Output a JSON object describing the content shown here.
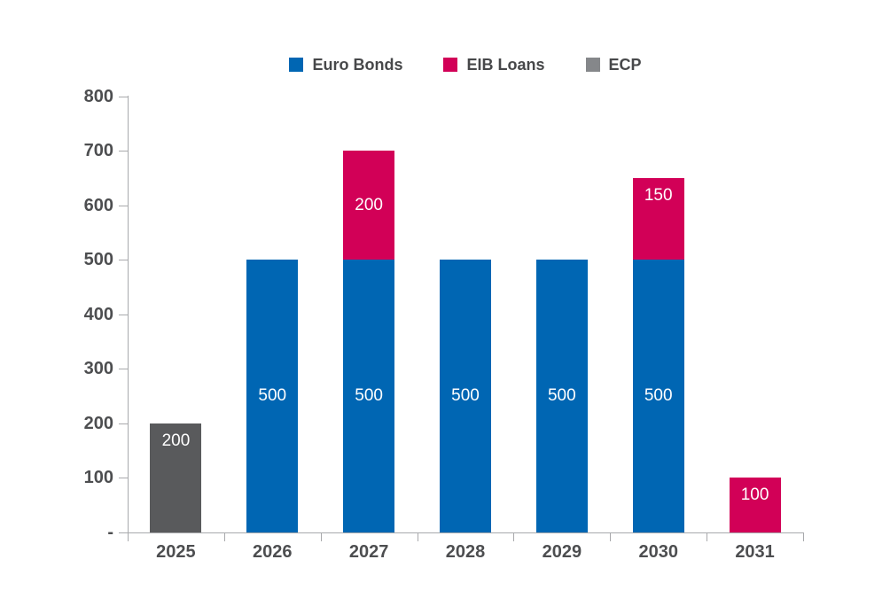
{
  "chart_data": {
    "type": "bar",
    "stacked": true,
    "title": "",
    "xlabel": "",
    "ylabel": "",
    "categories": [
      "2025",
      "2026",
      "2027",
      "2028",
      "2029",
      "2030",
      "2031"
    ],
    "series": [
      {
        "name": "Euro Bonds",
        "color": "#0066B3",
        "legend_color": "#0066B3",
        "values": [
          0,
          500,
          500,
          500,
          500,
          500,
          0
        ],
        "data_labels": [
          "",
          "500",
          "500",
          "500",
          "500",
          "500",
          ""
        ],
        "label_pos": [
          "",
          "center",
          "center",
          "center",
          "center",
          "center",
          ""
        ]
      },
      {
        "name": "EIB Loans",
        "color": "#D20057",
        "legend_color": "#D20057",
        "values": [
          0,
          0,
          200,
          0,
          0,
          150,
          100
        ],
        "data_labels": [
          "",
          "",
          "200",
          "",
          "",
          "150",
          "100"
        ],
        "label_pos": [
          "",
          "",
          "center",
          "",
          "",
          "top",
          "top"
        ]
      },
      {
        "name": "ECP",
        "color": "#595A5C",
        "legend_color": "#85878A",
        "values": [
          200,
          0,
          0,
          0,
          0,
          0,
          0
        ],
        "data_labels": [
          "200",
          "",
          "",
          "",
          "",
          "",
          ""
        ],
        "label_pos": [
          "top",
          "",
          "",
          "",
          "",
          "",
          ""
        ]
      }
    ],
    "ylim": [
      0,
      800
    ],
    "y_tick_labels": [
      "800",
      "700",
      "600",
      "500",
      "400",
      "300",
      "200",
      "100",
      "-"
    ],
    "grid": false,
    "legend_position": "top"
  }
}
